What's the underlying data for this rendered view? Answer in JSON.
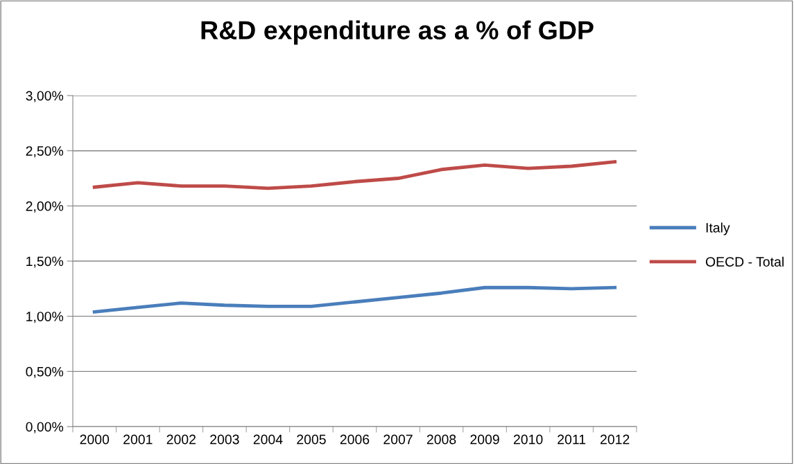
{
  "chart_data": {
    "type": "line",
    "title": "R&D expenditure as a % of GDP",
    "categories": [
      "2000",
      "2001",
      "2002",
      "2003",
      "2004",
      "2005",
      "2006",
      "2007",
      "2008",
      "2009",
      "2010",
      "2011",
      "2012"
    ],
    "series": [
      {
        "name": "Italy",
        "color": "#4a7ebb",
        "values": [
          1.04,
          1.08,
          1.12,
          1.1,
          1.09,
          1.09,
          1.13,
          1.17,
          1.21,
          1.26,
          1.26,
          1.25,
          1.26
        ]
      },
      {
        "name": "OECD - Total",
        "color": "#be4b48",
        "values": [
          2.17,
          2.21,
          2.18,
          2.18,
          2.16,
          2.18,
          2.22,
          2.25,
          2.33,
          2.37,
          2.34,
          2.36,
          2.4
        ]
      }
    ],
    "ylim": [
      0,
      3
    ],
    "yticks": [
      {
        "value": 0,
        "label": "0,00%"
      },
      {
        "value": 0.5,
        "label": "0,50%"
      },
      {
        "value": 1,
        "label": "1,00%"
      },
      {
        "value": 1.5,
        "label": "1,50%"
      },
      {
        "value": 2,
        "label": "2,00%"
      },
      {
        "value": 2.5,
        "label": "2,50%"
      },
      {
        "value": 3,
        "label": "3,00%"
      }
    ],
    "grid": "y",
    "legend": "right",
    "marker": "none",
    "line_style": "solid"
  }
}
